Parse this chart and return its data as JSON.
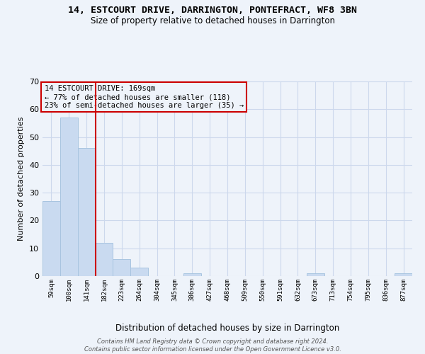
{
  "title1": "14, ESTCOURT DRIVE, DARRINGTON, PONTEFRACT, WF8 3BN",
  "title2": "Size of property relative to detached houses in Darrington",
  "xlabel": "Distribution of detached houses by size in Darrington",
  "ylabel": "Number of detached properties",
  "categories": [
    "59sqm",
    "100sqm",
    "141sqm",
    "182sqm",
    "223sqm",
    "264sqm",
    "304sqm",
    "345sqm",
    "386sqm",
    "427sqm",
    "468sqm",
    "509sqm",
    "550sqm",
    "591sqm",
    "632sqm",
    "673sqm",
    "713sqm",
    "754sqm",
    "795sqm",
    "836sqm",
    "877sqm"
  ],
  "values": [
    27,
    57,
    46,
    12,
    6,
    3,
    0,
    0,
    1,
    0,
    0,
    0,
    0,
    0,
    0,
    1,
    0,
    0,
    0,
    0,
    1
  ],
  "bar_color": "#c9daf0",
  "bar_edge_color": "#a8c4e0",
  "grid_color": "#ccd8ec",
  "background_color": "#eef3fa",
  "vline_x": 2.5,
  "vline_color": "#cc0000",
  "annotation_text": "14 ESTCOURT DRIVE: 169sqm\n← 77% of detached houses are smaller (118)\n23% of semi-detached houses are larger (35) →",
  "annotation_box_color": "#cc0000",
  "ylim": [
    0,
    70
  ],
  "yticks": [
    0,
    10,
    20,
    30,
    40,
    50,
    60,
    70
  ],
  "footer": "Contains HM Land Registry data © Crown copyright and database right 2024.\nContains public sector information licensed under the Open Government Licence v3.0."
}
